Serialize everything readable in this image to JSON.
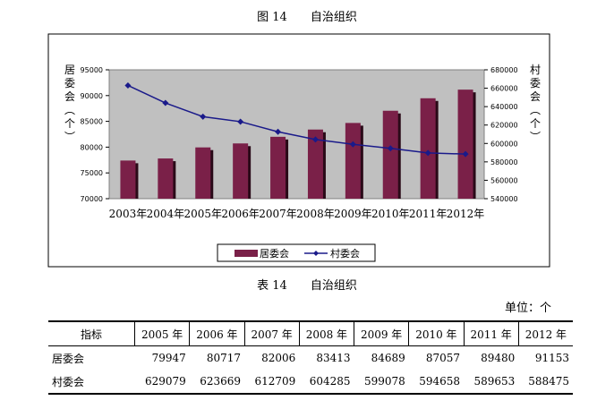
{
  "figure_caption": "图 14　　自治组织",
  "table_caption": "表 14　　自治组织",
  "unit_label": "单位：个",
  "colors": {
    "bar": "#7a2048",
    "bar_shadow": "#2a0a18",
    "line": "#1a1a8a",
    "plot_bg": "#c0c0c0"
  },
  "chart_data": {
    "type": "bar",
    "categories": [
      "2003年",
      "2004年",
      "2005年",
      "2006年",
      "2007年",
      "2008年",
      "2009年",
      "2010年",
      "2011年",
      "2012年"
    ],
    "series": [
      {
        "name": "居委会",
        "type": "bar",
        "axis": "left",
        "values": [
          77400,
          77800,
          79947,
          80717,
          82006,
          83413,
          84689,
          87057,
          89480,
          91153
        ]
      },
      {
        "name": "村委会",
        "type": "line",
        "axis": "right",
        "values": [
          663000,
          644000,
          629079,
          623669,
          612709,
          604285,
          599078,
          594658,
          589653,
          588475
        ]
      }
    ],
    "ylabel_left": "居委会（个）",
    "ylabel_right": "村委会（个）",
    "ylim_left": [
      70000,
      95000
    ],
    "ylim_right": [
      540000,
      680000
    ],
    "yticks_left": [
      "70000",
      "75000",
      "80000",
      "85000",
      "90000",
      "95000"
    ],
    "yticks_right": [
      "540000",
      "560000",
      "580000",
      "600000",
      "620000",
      "640000",
      "660000",
      "680000"
    ],
    "legend_placement": "bottom",
    "grid": false
  },
  "table": {
    "headers": [
      "指标",
      "2005 年",
      "2006 年",
      "2007 年",
      "2008 年",
      "2009 年",
      "2010 年",
      "2011 年",
      "2012 年"
    ],
    "rows": [
      [
        "居委会",
        "79947",
        "80717",
        "82006",
        "83413",
        "84689",
        "87057",
        "89480",
        "91153"
      ],
      [
        "村委会",
        "629079",
        "623669",
        "612709",
        "604285",
        "599078",
        "594658",
        "589653",
        "588475"
      ]
    ]
  }
}
